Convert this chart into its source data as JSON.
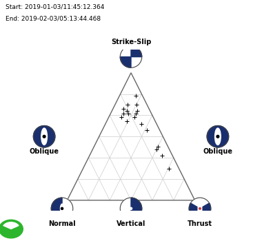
{
  "start_text": "Start: 2019-01-03/11:45:12.364",
  "end_text": "End: 2019-02-03/05:13:44.468",
  "background_color": "#ffffff",
  "triangle_color": "#666666",
  "grid_color": "#cccccc",
  "grid_divisions": 6,
  "data_points_ternary": [
    [
      0.72,
      0.2,
      0.08
    ],
    [
      0.68,
      0.22,
      0.1
    ],
    [
      0.65,
      0.25,
      0.1
    ],
    [
      0.7,
      0.18,
      0.12
    ],
    [
      0.75,
      0.15,
      0.1
    ],
    [
      0.68,
      0.18,
      0.14
    ],
    [
      0.62,
      0.22,
      0.16
    ],
    [
      0.65,
      0.15,
      0.2
    ],
    [
      0.68,
      0.12,
      0.2
    ],
    [
      0.7,
      0.1,
      0.2
    ],
    [
      0.6,
      0.12,
      0.28
    ],
    [
      0.55,
      0.1,
      0.35
    ],
    [
      0.4,
      0.1,
      0.5
    ],
    [
      0.42,
      0.08,
      0.5
    ],
    [
      0.35,
      0.08,
      0.57
    ],
    [
      0.25,
      0.08,
      0.67
    ],
    [
      0.75,
      0.08,
      0.17
    ],
    [
      0.82,
      0.05,
      0.13
    ]
  ],
  "labels": {
    "top": "Strike-Slip",
    "bottom_left": "Normal",
    "bottom_center": "Vertical",
    "bottom_right": "Thrust",
    "mid_left": "Oblique",
    "mid_right": "Oblique"
  },
  "navy": "#1a2f6e",
  "edge_color": "#444444",
  "logo_color": "#2db52d"
}
